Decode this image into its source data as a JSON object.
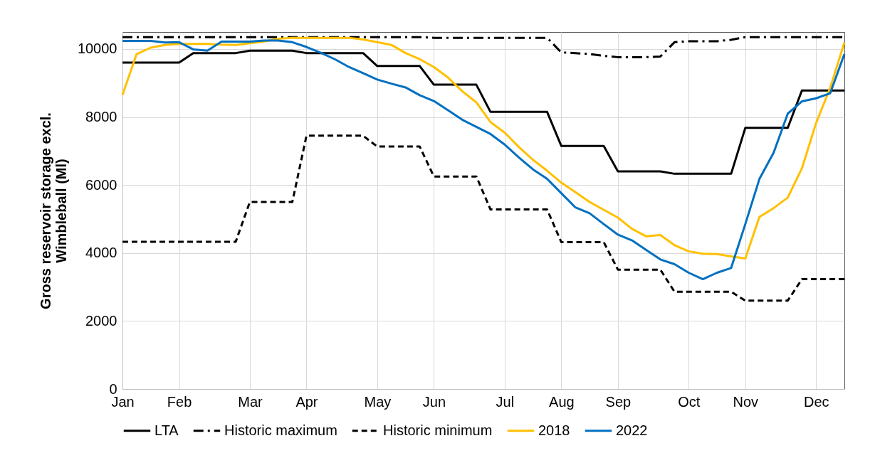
{
  "chart_data": {
    "type": "line",
    "ylabel": "Gross reservoir storage excl.\nWimbleball (Ml)",
    "categories": [
      "Jan",
      null,
      null,
      null,
      "Feb",
      null,
      null,
      null,
      null,
      "Mar",
      null,
      null,
      null,
      "Apr",
      null,
      null,
      null,
      null,
      "May",
      null,
      null,
      null,
      "Jun",
      null,
      null,
      null,
      null,
      "Jul",
      null,
      null,
      null,
      "Aug",
      null,
      null,
      null,
      "Sep",
      null,
      null,
      null,
      null,
      "Oct",
      null,
      null,
      null,
      "Nov",
      null,
      null,
      null,
      null,
      "Dec",
      null,
      null
    ],
    "ylim": [
      0,
      10500
    ],
    "yticks": [
      0,
      2000,
      4000,
      6000,
      8000,
      10000
    ],
    "grid": true,
    "legend": "bottom",
    "series": [
      {
        "name": "LTA",
        "color": "#000000",
        "line_style": "solid",
        "values": [
          9600,
          9600,
          9600,
          9600,
          9600,
          9880,
          9880,
          9880,
          9880,
          9950,
          9950,
          9950,
          9950,
          9880,
          9880,
          9880,
          9880,
          9880,
          9500,
          9500,
          9500,
          9500,
          8950,
          8950,
          8950,
          8950,
          8150,
          8150,
          8150,
          8150,
          8150,
          7150,
          7150,
          7150,
          7150,
          6400,
          6400,
          6400,
          6400,
          6330,
          6330,
          6330,
          6330,
          6330,
          7680,
          7680,
          7680,
          7680,
          8780,
          8780,
          8780,
          8780
        ]
      },
      {
        "name": "Historic maximum",
        "color": "#000000",
        "line_style": "dashdot",
        "values": [
          10350,
          10350,
          10350,
          10350,
          10350,
          10350,
          10350,
          10350,
          10350,
          10350,
          10350,
          10350,
          10350,
          10350,
          10350,
          10350,
          10350,
          10350,
          10350,
          10350,
          10350,
          10350,
          10330,
          10330,
          10330,
          10330,
          10330,
          10330,
          10330,
          10330,
          10330,
          9900,
          9880,
          9850,
          9800,
          9760,
          9760,
          9760,
          9780,
          10200,
          10230,
          10230,
          10230,
          10270,
          10350,
          10350,
          10350,
          10350,
          10350,
          10350,
          10350,
          10350
        ]
      },
      {
        "name": "Historic minimum",
        "color": "#000000",
        "line_style": "dashed",
        "values": [
          4330,
          4330,
          4330,
          4330,
          4330,
          4330,
          4330,
          4330,
          4330,
          5500,
          5500,
          5500,
          5500,
          7450,
          7450,
          7450,
          7450,
          7450,
          7130,
          7130,
          7130,
          7130,
          6250,
          6250,
          6250,
          6250,
          5280,
          5280,
          5280,
          5280,
          5280,
          4320,
          4320,
          4320,
          4320,
          3510,
          3510,
          3510,
          3510,
          2860,
          2860,
          2860,
          2860,
          2860,
          2600,
          2600,
          2600,
          2600,
          3230,
          3230,
          3230,
          3230
        ]
      },
      {
        "name": "2018",
        "color": "#ffc000",
        "line_style": "solid",
        "values": [
          8650,
          9850,
          10040,
          10120,
          10150,
          10150,
          10150,
          10130,
          10120,
          10170,
          10220,
          10300,
          10330,
          10330,
          10330,
          10330,
          10330,
          10280,
          10200,
          10120,
          9880,
          9700,
          9470,
          9160,
          8760,
          8430,
          7850,
          7540,
          7120,
          6740,
          6420,
          6070,
          5790,
          5500,
          5270,
          5040,
          4710,
          4490,
          4530,
          4230,
          4050,
          3980,
          3970,
          3900,
          3840,
          5060,
          5320,
          5630,
          6490,
          7820,
          8860,
          10190
        ]
      },
      {
        "name": "2022",
        "color": "#0070c0",
        "line_style": "solid",
        "values": [
          10240,
          10240,
          10240,
          10190,
          10200,
          9990,
          9950,
          10220,
          10220,
          10220,
          10250,
          10250,
          10200,
          10060,
          9890,
          9700,
          9470,
          9290,
          9100,
          8980,
          8870,
          8640,
          8470,
          8200,
          7920,
          7710,
          7500,
          7190,
          6810,
          6460,
          6180,
          5760,
          5340,
          5170,
          4850,
          4540,
          4370,
          4090,
          3810,
          3670,
          3420,
          3230,
          3420,
          3560,
          4850,
          6180,
          6950,
          8100,
          8460,
          8550,
          8700,
          9850
        ]
      }
    ]
  }
}
